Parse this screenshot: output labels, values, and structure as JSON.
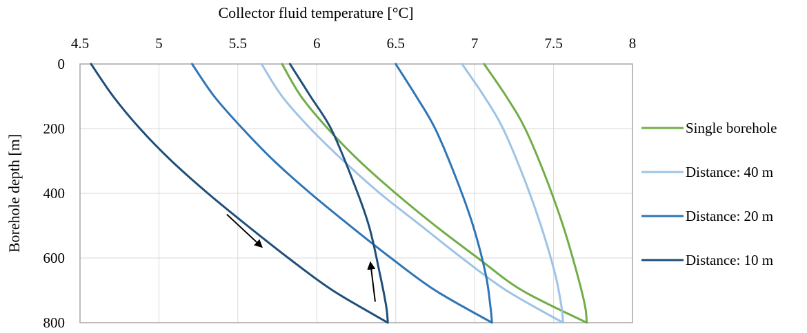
{
  "chart_data": {
    "type": "line",
    "title": "",
    "xlabel": "Collector fluid temperature [°C]",
    "ylabel": "Borehole depth [m]",
    "x_axis_position": "top",
    "y_axis_inverted": true,
    "xlim": [
      4.5,
      8
    ],
    "ylim": [
      0,
      800
    ],
    "xticks": [
      "4.5",
      "5",
      "5.5",
      "6",
      "6.5",
      "7",
      "7.5",
      "8"
    ],
    "yticks": [
      "0",
      "200",
      "400",
      "600",
      "800"
    ],
    "grid": true,
    "legend_position": "right",
    "series": [
      {
        "name": "Single borehole",
        "color": "#70ad47",
        "points": [
          {
            "x": 5.78,
            "y": 0
          },
          {
            "x": 5.9,
            "y": 100
          },
          {
            "x": 6.07,
            "y": 200
          },
          {
            "x": 6.27,
            "y": 300
          },
          {
            "x": 6.5,
            "y": 400
          },
          {
            "x": 6.75,
            "y": 500
          },
          {
            "x": 7.02,
            "y": 600
          },
          {
            "x": 7.3,
            "y": 700
          },
          {
            "x": 7.71,
            "y": 800
          },
          {
            "x": 7.7,
            "y": 750
          },
          {
            "x": 7.65,
            "y": 650
          },
          {
            "x": 7.56,
            "y": 500
          },
          {
            "x": 7.45,
            "y": 350
          },
          {
            "x": 7.32,
            "y": 200
          },
          {
            "x": 7.2,
            "y": 100
          },
          {
            "x": 7.06,
            "y": 0
          }
        ]
      },
      {
        "name": "Distance: 40 m",
        "color": "#9dc3e6",
        "points": [
          {
            "x": 5.65,
            "y": 0
          },
          {
            "x": 5.78,
            "y": 100
          },
          {
            "x": 5.96,
            "y": 200
          },
          {
            "x": 6.17,
            "y": 300
          },
          {
            "x": 6.4,
            "y": 400
          },
          {
            "x": 6.66,
            "y": 500
          },
          {
            "x": 6.92,
            "y": 600
          },
          {
            "x": 7.2,
            "y": 700
          },
          {
            "x": 7.56,
            "y": 800
          },
          {
            "x": 7.55,
            "y": 750
          },
          {
            "x": 7.51,
            "y": 650
          },
          {
            "x": 7.42,
            "y": 500
          },
          {
            "x": 7.31,
            "y": 350
          },
          {
            "x": 7.18,
            "y": 200
          },
          {
            "x": 7.06,
            "y": 100
          },
          {
            "x": 6.92,
            "y": 0
          }
        ]
      },
      {
        "name": "Distance: 20 m",
        "color": "#2e75b6",
        "points": [
          {
            "x": 5.21,
            "y": 0
          },
          {
            "x": 5.35,
            "y": 100
          },
          {
            "x": 5.53,
            "y": 200
          },
          {
            "x": 5.73,
            "y": 300
          },
          {
            "x": 5.96,
            "y": 400
          },
          {
            "x": 6.21,
            "y": 500
          },
          {
            "x": 6.47,
            "y": 600
          },
          {
            "x": 6.75,
            "y": 700
          },
          {
            "x": 7.11,
            "y": 800
          },
          {
            "x": 7.1,
            "y": 750
          },
          {
            "x": 7.07,
            "y": 650
          },
          {
            "x": 6.99,
            "y": 500
          },
          {
            "x": 6.88,
            "y": 350
          },
          {
            "x": 6.75,
            "y": 200
          },
          {
            "x": 6.63,
            "y": 100
          },
          {
            "x": 6.5,
            "y": 0
          }
        ]
      },
      {
        "name": "Distance: 10 m",
        "color": "#1f4e79",
        "points": [
          {
            "x": 4.57,
            "y": 0
          },
          {
            "x": 4.71,
            "y": 100
          },
          {
            "x": 4.88,
            "y": 200
          },
          {
            "x": 5.08,
            "y": 300
          },
          {
            "x": 5.31,
            "y": 400
          },
          {
            "x": 5.56,
            "y": 500
          },
          {
            "x": 5.82,
            "y": 600
          },
          {
            "x": 6.1,
            "y": 700
          },
          {
            "x": 6.45,
            "y": 800
          },
          {
            "x": 6.44,
            "y": 750
          },
          {
            "x": 6.4,
            "y": 650
          },
          {
            "x": 6.33,
            "y": 500
          },
          {
            "x": 6.22,
            "y": 350
          },
          {
            "x": 6.09,
            "y": 200
          },
          {
            "x": 5.96,
            "y": 100
          },
          {
            "x": 5.83,
            "y": 0
          }
        ]
      }
    ],
    "annotations": [
      {
        "type": "arrow",
        "meaning": "downward flow direction",
        "from": {
          "x": 5.43,
          "y": 465
        },
        "to": {
          "x": 5.65,
          "y": 565
        }
      },
      {
        "type": "arrow",
        "meaning": "upward flow direction",
        "from": {
          "x": 6.37,
          "y": 735
        },
        "to": {
          "x": 6.34,
          "y": 615
        }
      }
    ]
  }
}
